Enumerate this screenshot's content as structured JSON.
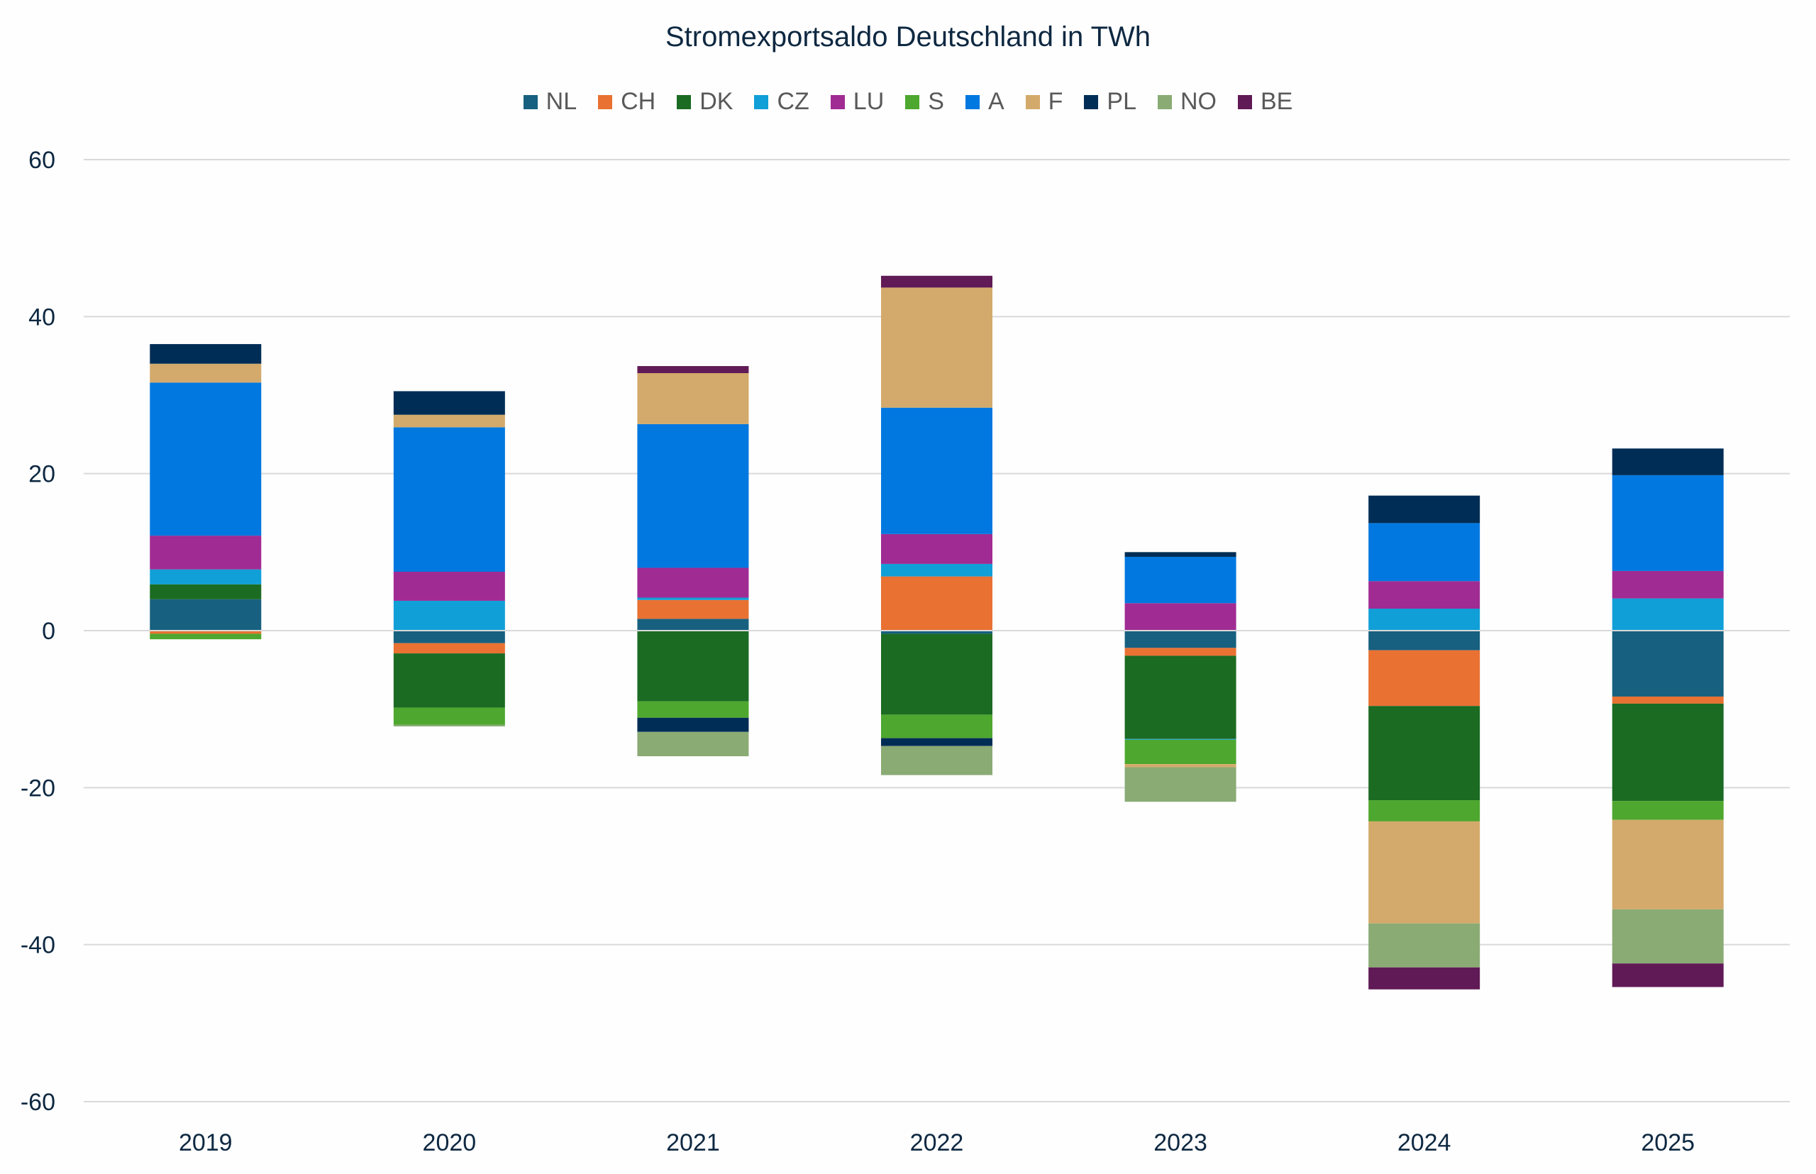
{
  "chart_data": {
    "type": "bar",
    "stacked": true,
    "title": "Stromexportsaldo Deutschland in TWh",
    "categories": [
      "2019",
      "2020",
      "2021",
      "2022",
      "2023",
      "2024",
      "2025"
    ],
    "ylim": [
      -60,
      60
    ],
    "yticks": [
      60,
      40,
      20,
      0,
      -20,
      -40,
      -60
    ],
    "grid": true,
    "legend": "top",
    "series": [
      {
        "name": "NL",
        "color": "#17607f",
        "values": [
          4.0,
          -1.6,
          1.5,
          -0.4,
          -2.2,
          -2.5,
          -8.4
        ]
      },
      {
        "name": "CH",
        "color": "#e97132",
        "values": [
          -0.4,
          -1.3,
          2.4,
          6.9,
          -1.0,
          -7.1,
          -0.9
        ]
      },
      {
        "name": "DK",
        "color": "#1b6b23",
        "values": [
          1.9,
          -6.9,
          -9.0,
          -10.3,
          -10.6,
          -12.0,
          -12.4
        ]
      },
      {
        "name": "CZ",
        "color": "#119fd7",
        "values": [
          1.9,
          3.8,
          0.3,
          1.6,
          -0.1,
          2.8,
          4.1
        ]
      },
      {
        "name": "LU",
        "color": "#a02b93",
        "values": [
          4.3,
          3.7,
          3.8,
          3.8,
          3.5,
          3.5,
          3.5
        ]
      },
      {
        "name": "S",
        "color": "#4ea72e",
        "values": [
          -0.7,
          -2.2,
          -2.1,
          -3.0,
          -3.1,
          -2.7,
          -2.4
        ]
      },
      {
        "name": "A",
        "color": "#0078e0",
        "values": [
          19.5,
          18.4,
          18.3,
          16.1,
          5.9,
          7.4,
          12.2
        ]
      },
      {
        "name": "F",
        "color": "#d3aa6b",
        "values": [
          2.4,
          1.6,
          6.5,
          15.3,
          -0.4,
          -13.0,
          -11.4
        ]
      },
      {
        "name": "PL",
        "color": "#002d55",
        "values": [
          2.5,
          3.0,
          -1.8,
          -1.0,
          0.6,
          3.5,
          3.4
        ]
      },
      {
        "name": "NO",
        "color": "#8aab74",
        "values": [
          0,
          -0.2,
          -3.1,
          -3.7,
          -4.4,
          -5.6,
          -6.9
        ]
      },
      {
        "name": "BE",
        "color": "#601a56",
        "values": [
          0,
          0,
          0.9,
          1.5,
          0,
          -2.8,
          -3.0
        ]
      }
    ]
  }
}
